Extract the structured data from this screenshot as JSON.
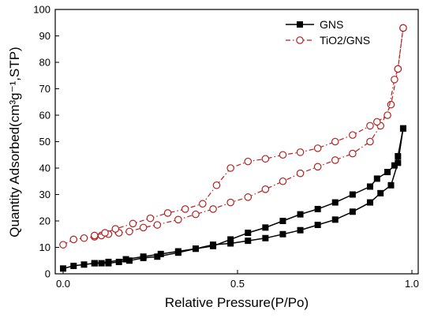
{
  "chart_data": {
    "type": "line",
    "xlabel": "Relative Pressure(P/Po)",
    "ylabel": "Quantity Adsorbed(cm³g⁻¹,STP)",
    "xlim": [
      0.0,
      1.0
    ],
    "ylim": [
      0,
      100
    ],
    "xticks": [
      0.0,
      0.5,
      1.0
    ],
    "xtick_labels": [
      "0.0",
      "0.5",
      "1.0"
    ],
    "yticks": [
      0,
      10,
      20,
      30,
      40,
      50,
      60,
      70,
      80,
      90,
      100
    ],
    "ytick_labels": [
      "0",
      "10",
      "20",
      "30",
      "40",
      "50",
      "60",
      "70",
      "80",
      "90",
      "100"
    ],
    "grid": false,
    "legend_position": "top-right",
    "series": [
      {
        "name": "GNS",
        "color": "#000000",
        "marker": "filled-square",
        "line_style": "solid",
        "adsorption": {
          "x": [
            0.0,
            0.03,
            0.06,
            0.09,
            0.11,
            0.13,
            0.16,
            0.19,
            0.23,
            0.27,
            0.33,
            0.38,
            0.43,
            0.48,
            0.53,
            0.58,
            0.63,
            0.68,
            0.73,
            0.78,
            0.83,
            0.88,
            0.91,
            0.94,
            0.96,
            0.975
          ],
          "y": [
            2,
            3,
            3.5,
            4,
            4,
            4,
            4.5,
            5,
            6,
            6.5,
            8,
            9.5,
            11,
            11.5,
            12.5,
            13.5,
            15,
            16.5,
            18.5,
            20.5,
            23.5,
            27,
            30.5,
            33.5,
            42,
            55
          ]
        },
        "desorption": {
          "x": [
            0.975,
            0.96,
            0.95,
            0.93,
            0.9,
            0.88,
            0.83,
            0.78,
            0.73,
            0.68,
            0.63,
            0.58,
            0.53,
            0.48,
            0.43,
            0.38,
            0.33,
            0.28,
            0.23,
            0.18,
            0.13,
            0.09
          ],
          "y": [
            55,
            44.5,
            41,
            38.5,
            36,
            33,
            30,
            27,
            24.5,
            22.5,
            20,
            17.5,
            15.5,
            13,
            10.5,
            9.5,
            8.5,
            7.5,
            6.5,
            5.5,
            4.5,
            4
          ]
        }
      },
      {
        "name": "TiO2/GNS",
        "color": "#b22222",
        "marker": "open-circle",
        "line_style": "dash-dot",
        "adsorption": {
          "x": [
            0.0,
            0.03,
            0.06,
            0.09,
            0.11,
            0.13,
            0.16,
            0.19,
            0.23,
            0.27,
            0.33,
            0.38,
            0.43,
            0.48,
            0.53,
            0.58,
            0.63,
            0.68,
            0.73,
            0.78,
            0.83,
            0.88,
            0.91,
            0.94,
            0.96,
            0.975
          ],
          "y": [
            11,
            13,
            13.5,
            14,
            14.5,
            15,
            15.5,
            16,
            17.5,
            18.5,
            20.5,
            22.5,
            24.5,
            27,
            29,
            32,
            35,
            38,
            40.5,
            43,
            45.5,
            50,
            56,
            64,
            77.5,
            93
          ]
        },
        "desorption": {
          "x": [
            0.975,
            0.96,
            0.95,
            0.93,
            0.9,
            0.88,
            0.83,
            0.78,
            0.73,
            0.68,
            0.63,
            0.58,
            0.53,
            0.48,
            0.44,
            0.4,
            0.35,
            0.3,
            0.25,
            0.2,
            0.15,
            0.12,
            0.09
          ],
          "y": [
            93,
            77.5,
            73.5,
            60,
            57.5,
            56,
            52.5,
            50,
            47.5,
            46,
            45,
            43.5,
            42.5,
            40,
            33.5,
            26.5,
            24.5,
            23,
            21,
            19,
            17,
            15.5,
            14.5
          ]
        }
      }
    ]
  },
  "legend": {
    "items": [
      "GNS",
      "TiO2/GNS"
    ]
  }
}
